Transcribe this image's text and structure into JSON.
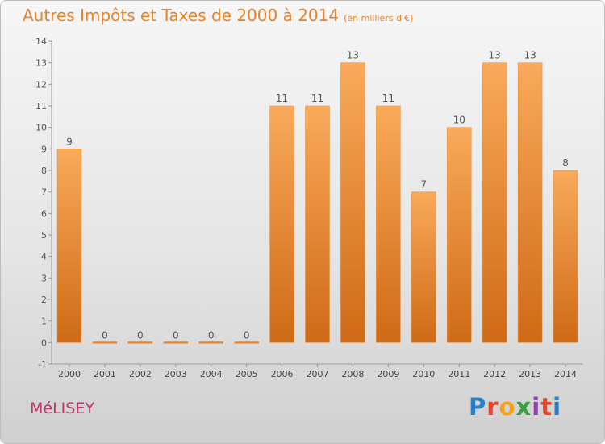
{
  "title": {
    "main": "Autres Impôts et Taxes de 2000 à 2014",
    "unit": "(en milliers d'€)"
  },
  "commune": "MéLISEY",
  "logo": {
    "text": "Proxiti",
    "letters": [
      {
        "ch": "P",
        "color": "#2b7fc8"
      },
      {
        "ch": "r",
        "color": "#e6462e"
      },
      {
        "ch": "o",
        "color": "#f2a31b"
      },
      {
        "ch": "x",
        "color": "#3aa142"
      },
      {
        "ch": "i",
        "color": "#8e44ad"
      },
      {
        "ch": "t",
        "color": "#e6462e"
      },
      {
        "ch": "i",
        "color": "#2b7fc8"
      }
    ]
  },
  "colors": {
    "bar_light": "#f9aa5a",
    "bar_dark": "#cf6a16",
    "title": "#e5822a",
    "commune": "#c2346a"
  },
  "chart_data": {
    "type": "bar",
    "categories": [
      "2000",
      "2001",
      "2002",
      "2003",
      "2004",
      "2005",
      "2006",
      "2007",
      "2008",
      "2009",
      "2010",
      "2011",
      "2012",
      "2013",
      "2014"
    ],
    "values": [
      9,
      0,
      0,
      0,
      0,
      0,
      11,
      11,
      13,
      11,
      7,
      10,
      13,
      13,
      8
    ],
    "ylim": [
      -1,
      14
    ],
    "yticks": [
      {
        "value": -1,
        "label": "-1"
      },
      {
        "value": 0,
        "label": "0"
      },
      {
        "value": 1,
        "label": "1"
      },
      {
        "value": 2,
        "label": "2"
      },
      {
        "value": 3,
        "label": "3"
      },
      {
        "value": 4,
        "label": "4"
      },
      {
        "value": 5,
        "label": "5"
      },
      {
        "value": 6,
        "label": "6"
      },
      {
        "value": 7,
        "label": "7"
      },
      {
        "value": 8,
        "label": "8"
      },
      {
        "value": 9,
        "label": "9"
      },
      {
        "value": 10,
        "label": "10"
      },
      {
        "value": 11,
        "label": "11"
      },
      {
        "value": 12,
        "label": "12"
      },
      {
        "value": 13,
        "label": "13"
      },
      {
        "value": 14,
        "label": "14"
      }
    ],
    "grid": false
  }
}
